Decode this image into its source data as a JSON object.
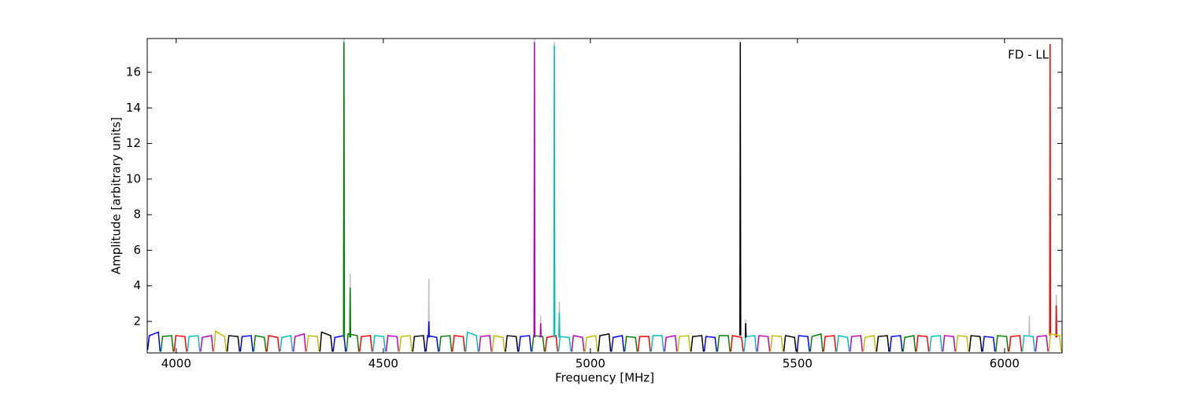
{
  "chart_data": {
    "type": "line",
    "xlabel": "Frequency [MHz]",
    "ylabel": "Amplitude [arbitrary units]",
    "annotation": "FD - LL",
    "xlim": [
      3930,
      6139
    ],
    "ylim": [
      0.23,
      17.9
    ],
    "xticks": [
      4000,
      4500,
      5000,
      5500,
      6000
    ],
    "yticks": [
      2,
      4,
      6,
      8,
      10,
      12,
      14,
      16
    ],
    "series": [
      {
        "color": "#bfbfbf",
        "x": [
          4404,
          4405,
          4406,
          null,
          4419,
          4420,
          4421,
          null,
          4609,
          4610,
          4611,
          null,
          4864,
          4865,
          4866,
          null,
          4879,
          4880,
          4881,
          null,
          4912,
          4913,
          4914,
          null,
          4924,
          4925,
          4926,
          null,
          5374,
          5375,
          5376,
          null,
          6059,
          6060,
          6061,
          null,
          6124,
          6125,
          6126
        ],
        "values": [
          1.1,
          17.9,
          1.1,
          null,
          1.1,
          4.7,
          1.1,
          null,
          1.1,
          4.4,
          1.1,
          null,
          1.1,
          17.9,
          1.1,
          null,
          1.1,
          2.3,
          1.1,
          null,
          1.1,
          17.7,
          1.1,
          null,
          1.1,
          3.1,
          1.1,
          null,
          1.1,
          2.1,
          1.1,
          null,
          1.2,
          2.3,
          1.2,
          null,
          1.1,
          3.5,
          1.1
        ]
      },
      {
        "color": "#0000ff",
        "x": [
          3931,
          3935,
          3957,
          3961,
          null,
          4155,
          4159,
          4181,
          4185,
          null,
          4379,
          4383,
          4405,
          4409,
          null,
          4603,
          4607,
          4629,
          4633,
          null,
          4827,
          4831,
          4853,
          4857,
          null,
          5051,
          5055,
          5077,
          5081,
          null,
          5275,
          5279,
          5301,
          5305,
          null,
          5499,
          5503,
          5525,
          5529,
          null,
          5723,
          5727,
          5749,
          5753,
          null,
          5947,
          5951,
          5973,
          5977,
          null,
          4609,
          4610,
          4611
        ],
        "values": [
          0.4,
          1.2,
          1.4,
          0.3,
          null,
          0.3,
          1.15,
          1.2,
          0.3,
          null,
          0.3,
          1.1,
          1.2,
          0.3,
          null,
          0.3,
          1.2,
          1.1,
          0.3,
          null,
          0.3,
          1.15,
          1.2,
          0.3,
          null,
          0.3,
          1.1,
          1.2,
          0.3,
          null,
          0.3,
          1.15,
          1.1,
          0.3,
          null,
          0.3,
          1.2,
          1.15,
          0.3,
          null,
          0.3,
          1.15,
          1.2,
          0.3,
          null,
          0.3,
          1.15,
          1.1,
          0.3,
          null,
          1.1,
          2.0,
          1.1
        ]
      },
      {
        "color": "#008000",
        "x": [
          3963,
          3967,
          3989,
          3993,
          null,
          4187,
          4191,
          4213,
          4217,
          null,
          4411,
          4415,
          4437,
          4441,
          null,
          4635,
          4639,
          4661,
          4665,
          null,
          4859,
          4863,
          4885,
          4889,
          null,
          5083,
          5087,
          5109,
          5113,
          null,
          5307,
          5311,
          5333,
          5337,
          null,
          5531,
          5535,
          5557,
          5561,
          null,
          5755,
          5759,
          5781,
          5785,
          null,
          5979,
          5983,
          6005,
          6009,
          null,
          4404,
          4405,
          4406,
          null,
          4419,
          4420,
          4421
        ],
        "values": [
          0.3,
          1.15,
          1.2,
          0.3,
          null,
          0.3,
          1.2,
          1.1,
          0.3,
          null,
          0.3,
          1.3,
          1.2,
          0.3,
          null,
          0.3,
          1.15,
          1.2,
          0.3,
          null,
          0.3,
          1.2,
          1.15,
          0.3,
          null,
          0.3,
          1.15,
          1.1,
          0.3,
          null,
          0.3,
          1.2,
          1.2,
          0.3,
          null,
          0.3,
          1.15,
          1.3,
          0.3,
          null,
          0.3,
          1.1,
          1.2,
          0.3,
          null,
          0.3,
          1.2,
          1.15,
          0.3,
          null,
          1.1,
          17.7,
          1.1,
          null,
          1.1,
          3.9,
          1.1
        ]
      },
      {
        "color": "#ff0000",
        "x": [
          3995,
          3999,
          4021,
          4025,
          null,
          4219,
          4223,
          4245,
          4249,
          null,
          4443,
          4447,
          4469,
          4473,
          null,
          4667,
          4671,
          4693,
          4697,
          null,
          4891,
          4895,
          4917,
          4921,
          null,
          5115,
          5119,
          5141,
          5145,
          null,
          5339,
          5343,
          5365,
          5369,
          null,
          5563,
          5567,
          5589,
          5593,
          null,
          5787,
          5791,
          5813,
          5817,
          null,
          6011,
          6015,
          6037,
          6041,
          null,
          6109,
          6110,
          6111,
          null,
          6124,
          6125,
          6126
        ],
        "values": [
          0.3,
          1.2,
          1.15,
          0.3,
          null,
          0.3,
          1.2,
          1.1,
          0.3,
          null,
          0.3,
          1.15,
          1.2,
          0.3,
          null,
          0.3,
          1.2,
          1.15,
          0.3,
          null,
          0.3,
          1.1,
          1.2,
          0.3,
          null,
          0.3,
          1.15,
          1.15,
          0.3,
          null,
          0.3,
          1.2,
          1.1,
          0.3,
          null,
          0.3,
          1.15,
          1.2,
          0.3,
          null,
          0.3,
          1.2,
          1.15,
          0.3,
          null,
          0.3,
          1.15,
          1.2,
          0.3,
          null,
          1.2,
          17.6,
          1.2,
          null,
          1.1,
          2.9,
          1.1
        ]
      },
      {
        "color": "#00bfbf",
        "x": [
          4027,
          4031,
          4053,
          4057,
          null,
          4251,
          4255,
          4277,
          4281,
          null,
          4475,
          4479,
          4501,
          4505,
          null,
          4699,
          4703,
          4725,
          4729,
          null,
          4923,
          4927,
          4949,
          4953,
          null,
          5147,
          5151,
          5173,
          5177,
          null,
          5371,
          5375,
          5397,
          5401,
          null,
          5595,
          5599,
          5621,
          5625,
          null,
          5819,
          5823,
          5845,
          5849,
          null,
          6043,
          6047,
          6069,
          6073,
          null,
          4912,
          4913,
          4914,
          null,
          4924,
          4925,
          4926
        ],
        "values": [
          0.3,
          1.15,
          1.2,
          0.3,
          null,
          0.3,
          1.1,
          1.2,
          0.3,
          null,
          0.3,
          1.2,
          1.15,
          0.3,
          null,
          0.3,
          1.4,
          1.2,
          0.3,
          null,
          0.3,
          1.15,
          1.1,
          0.3,
          null,
          0.3,
          1.2,
          1.2,
          0.3,
          null,
          0.3,
          1.15,
          1.2,
          0.3,
          null,
          0.3,
          1.2,
          1.1,
          0.3,
          null,
          0.3,
          1.15,
          1.2,
          0.3,
          null,
          0.3,
          1.2,
          1.15,
          0.3,
          null,
          1.1,
          17.5,
          1.1,
          null,
          1.1,
          2.5,
          1.1
        ]
      },
      {
        "color": "#bf00bf",
        "x": [
          4059,
          4063,
          4085,
          4089,
          null,
          4283,
          4287,
          4309,
          4313,
          null,
          4507,
          4511,
          4533,
          4537,
          null,
          4731,
          4735,
          4757,
          4761,
          null,
          4955,
          4959,
          4981,
          4985,
          null,
          5179,
          5183,
          5205,
          5209,
          null,
          5403,
          5407,
          5429,
          5433,
          null,
          5627,
          5631,
          5653,
          5657,
          null,
          5851,
          5855,
          5877,
          5881,
          null,
          6075,
          6079,
          6101,
          6105,
          null,
          4864,
          4865,
          4866,
          null,
          4879,
          4880,
          4881
        ],
        "values": [
          0.3,
          1.1,
          1.2,
          0.3,
          null,
          0.3,
          1.15,
          1.3,
          0.3,
          null,
          0.3,
          1.2,
          1.15,
          0.3,
          null,
          0.3,
          1.15,
          1.2,
          0.3,
          null,
          0.3,
          1.2,
          1.1,
          0.3,
          null,
          0.3,
          1.1,
          1.2,
          0.3,
          null,
          0.3,
          1.2,
          1.15,
          0.3,
          null,
          0.3,
          1.15,
          1.2,
          0.3,
          null,
          0.3,
          1.2,
          1.15,
          0.3,
          null,
          0.3,
          1.15,
          1.2,
          0.3,
          null,
          1.1,
          17.7,
          1.1,
          null,
          1.1,
          1.9,
          1.1
        ]
      },
      {
        "color": "#bfbf00",
        "x": [
          4091,
          4095,
          4117,
          4121,
          null,
          4315,
          4319,
          4341,
          4345,
          null,
          4539,
          4543,
          4565,
          4569,
          null,
          4763,
          4767,
          4789,
          4793,
          null,
          4987,
          4991,
          5013,
          5017,
          null,
          5211,
          5215,
          5237,
          5241,
          null,
          5435,
          5439,
          5461,
          5465,
          null,
          5659,
          5663,
          5685,
          5689,
          null,
          5883,
          5887,
          5909,
          5913,
          null,
          6107,
          6111,
          6133,
          6137
        ],
        "values": [
          0.3,
          1.45,
          1.15,
          0.3,
          null,
          0.3,
          1.2,
          1.15,
          0.3,
          null,
          0.3,
          1.15,
          1.2,
          0.3,
          null,
          0.3,
          1.2,
          1.1,
          0.3,
          null,
          0.3,
          1.1,
          1.2,
          0.3,
          null,
          0.3,
          1.15,
          1.2,
          0.3,
          null,
          0.3,
          1.2,
          1.15,
          0.3,
          null,
          0.3,
          1.1,
          1.2,
          0.3,
          null,
          0.3,
          1.2,
          1.15,
          0.3,
          null,
          0.3,
          1.3,
          1.2,
          0.3
        ]
      },
      {
        "color": "#000000",
        "x": [
          4123,
          4127,
          4149,
          4153,
          null,
          4347,
          4351,
          4373,
          4377,
          null,
          4571,
          4575,
          4597,
          4601,
          null,
          4795,
          4799,
          4821,
          4825,
          null,
          5019,
          5023,
          5045,
          5049,
          null,
          5243,
          5247,
          5269,
          5273,
          null,
          5467,
          5471,
          5493,
          5497,
          null,
          5691,
          5695,
          5717,
          5721,
          null,
          5915,
          5919,
          5941,
          5945,
          null,
          5361,
          5362,
          5363,
          null,
          5374,
          5375,
          5376
        ],
        "values": [
          0.3,
          1.2,
          1.15,
          0.3,
          null,
          0.3,
          1.4,
          1.2,
          0.3,
          null,
          0.3,
          1.15,
          1.2,
          0.3,
          null,
          0.3,
          1.2,
          1.15,
          0.3,
          null,
          0.3,
          1.2,
          1.3,
          0.3,
          null,
          0.3,
          1.15,
          1.2,
          0.3,
          null,
          0.3,
          1.2,
          1.1,
          0.3,
          null,
          0.3,
          1.15,
          1.2,
          0.3,
          null,
          0.3,
          1.2,
          1.15,
          0.3,
          null,
          1.2,
          17.7,
          1.2,
          null,
          1.1,
          1.9,
          1.1
        ]
      }
    ]
  }
}
